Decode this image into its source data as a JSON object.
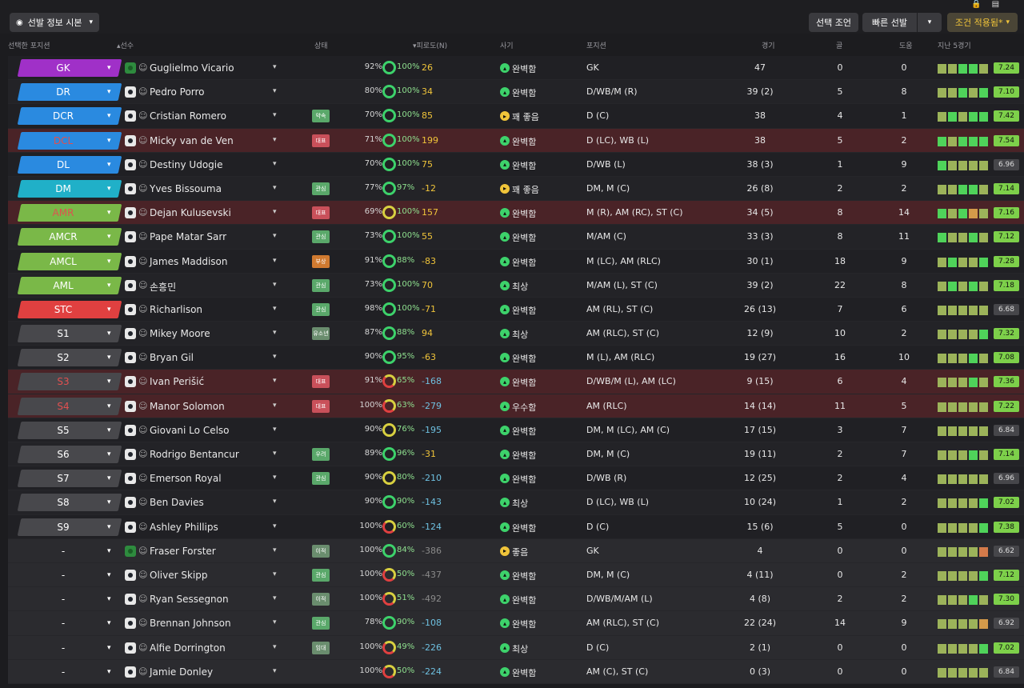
{
  "toolbar": {
    "view_button": "선발 정보 시본",
    "advice_button": "선택 조언",
    "quick_button": "빠른 선발",
    "filter_button": "조건 적용됨*",
    "top_icons": [
      "lock-icon",
      "clipboard-icon"
    ]
  },
  "columns": {
    "position": "선택한 포지션",
    "player": "선수",
    "status": "상태",
    "familiarity": "피로도(N)",
    "morale": "사기",
    "positions": "포지션",
    "apps": "경기",
    "goals": "골",
    "assists": "도움",
    "form": "지난 5경기"
  },
  "colors": {
    "gk": "#a030c8",
    "def": "#2a8ae0",
    "dm": "#20b0c8",
    "att": "#7ab848",
    "st": "#e04040",
    "sub": "#48484c",
    "accent": "#f0c43a"
  },
  "rows": [
    {
      "pos": "GK",
      "cat": "gk",
      "name": "Guglielmo Vicario",
      "kit": "gk",
      "status": "",
      "cond": "92%",
      "sharp": "100%",
      "ring": "green",
      "fam": "26",
      "famc": "pos-v",
      "morale": "완벽함",
      "mor_y": false,
      "positions": "GK",
      "apps": "47",
      "goals": "0",
      "assists": "0",
      "form": [
        "#9cb35a",
        "#9cb35a",
        "#4fd35a",
        "#4fd35a",
        "#9cb35a"
      ],
      "rating": "7.24",
      "rgrey": false,
      "style": ""
    },
    {
      "pos": "DR",
      "cat": "def",
      "name": "Pedro Porro",
      "kit": "",
      "status": "",
      "cond": "80%",
      "sharp": "100%",
      "ring": "green",
      "fam": "34",
      "famc": "pos-v",
      "morale": "완벽함",
      "mor_y": false,
      "positions": "D/WB/M (R)",
      "apps": "39 (2)",
      "goals": "5",
      "assists": "8",
      "form": [
        "#9cb35a",
        "#9cb35a",
        "#4fd35a",
        "#9cb35a",
        "#4fd35a"
      ],
      "rating": "7.10",
      "rgrey": false,
      "style": "alt"
    },
    {
      "pos": "DCR",
      "cat": "def",
      "name": "Cristian Romero",
      "kit": "",
      "status": "약속",
      "stc": "st-green",
      "cond": "70%",
      "sharp": "100%",
      "ring": "green",
      "fam": "85",
      "famc": "pos-v",
      "morale": "꽤 좋음",
      "mor_y": true,
      "positions": "D (C)",
      "apps": "38",
      "goals": "4",
      "assists": "1",
      "form": [
        "#9cb35a",
        "#4fd35a",
        "#9cb35a",
        "#4fd35a",
        "#4fd35a"
      ],
      "rating": "7.42",
      "rgrey": false,
      "style": ""
    },
    {
      "pos": "DCL",
      "cat": "def",
      "name": "Micky van de Ven",
      "kit": "",
      "status": "대표",
      "stc": "st-red",
      "cond": "71%",
      "sharp": "100%",
      "ring": "green",
      "fam": "199",
      "famc": "pos-v",
      "morale": "완벽함",
      "mor_y": false,
      "positions": "D (LC), WB (L)",
      "apps": "38",
      "goals": "5",
      "assists": "2",
      "form": [
        "#4fd35a",
        "#9cb35a",
        "#4fd35a",
        "#4fd35a",
        "#4fd35a"
      ],
      "rating": "7.54",
      "rgrey": false,
      "style": "warn",
      "warnlbl": true
    },
    {
      "pos": "DL",
      "cat": "def",
      "name": "Destiny Udogie",
      "kit": "",
      "status": "",
      "cond": "70%",
      "sharp": "100%",
      "ring": "green",
      "fam": "75",
      "famc": "pos-v",
      "morale": "완벽함",
      "mor_y": false,
      "positions": "D/WB (L)",
      "apps": "38 (3)",
      "goals": "1",
      "assists": "9",
      "form": [
        "#4fd35a",
        "#9cb35a",
        "#9cb35a",
        "#9cb35a",
        "#9cb35a"
      ],
      "rating": "6.96",
      "rgrey": true,
      "style": ""
    },
    {
      "pos": "DM",
      "cat": "dm",
      "name": "Yves Bissouma",
      "kit": "",
      "status": "관심",
      "stc": "st-green",
      "cond": "77%",
      "sharp": "97%",
      "ring": "green",
      "fam": "-12",
      "famc": "pos-v",
      "morale": "꽤 좋음",
      "mor_y": true,
      "positions": "DM, M (C)",
      "apps": "26 (8)",
      "goals": "2",
      "assists": "2",
      "form": [
        "#9cb35a",
        "#9cb35a",
        "#4fd35a",
        "#4fd35a",
        "#9cb35a"
      ],
      "rating": "7.14",
      "rgrey": false,
      "style": "alt"
    },
    {
      "pos": "AMR",
      "cat": "att",
      "name": "Dejan Kulusevski",
      "kit": "",
      "status": "대표",
      "stc": "st-red",
      "cond": "69%",
      "sharp": "100%",
      "ring": "yellow",
      "fam": "157",
      "famc": "pos-v",
      "morale": "완벽함",
      "mor_y": false,
      "positions": "M (R), AM (RC), ST (C)",
      "apps": "34 (5)",
      "goals": "8",
      "assists": "14",
      "form": [
        "#4fd35a",
        "#9cb35a",
        "#4fd35a",
        "#d49a4a",
        "#9cb35a"
      ],
      "rating": "7.16",
      "rgrey": false,
      "style": "warn",
      "warnlbl": true
    },
    {
      "pos": "AMCR",
      "cat": "att",
      "name": "Pape Matar Sarr",
      "kit": "",
      "status": "관심",
      "stc": "st-green",
      "cond": "73%",
      "sharp": "100%",
      "ring": "green",
      "fam": "55",
      "famc": "pos-v",
      "morale": "완벽함",
      "mor_y": false,
      "positions": "M/AM (C)",
      "apps": "33 (3)",
      "goals": "8",
      "assists": "11",
      "form": [
        "#4fd35a",
        "#9cb35a",
        "#9cb35a",
        "#4fd35a",
        "#9cb35a"
      ],
      "rating": "7.12",
      "rgrey": false,
      "style": "alt"
    },
    {
      "pos": "AMCL",
      "cat": "att",
      "name": "James Maddison",
      "kit": "",
      "status": "부상",
      "stc": "st-orange",
      "cond": "91%",
      "sharp": "88%",
      "ring": "green",
      "fam": "-83",
      "famc": "pos-v",
      "morale": "완벽함",
      "mor_y": false,
      "positions": "M (LC), AM (RLC)",
      "apps": "30 (1)",
      "goals": "18",
      "assists": "9",
      "form": [
        "#9cb35a",
        "#4fd35a",
        "#9cb35a",
        "#9cb35a",
        "#4fd35a"
      ],
      "rating": "7.28",
      "rgrey": false,
      "style": ""
    },
    {
      "pos": "AML",
      "cat": "att",
      "name": "손흥민",
      "kit": "",
      "status": "관심",
      "stc": "st-green",
      "cond": "73%",
      "sharp": "100%",
      "ring": "green",
      "fam": "70",
      "famc": "pos-v",
      "morale": "최상",
      "mor_y": false,
      "positions": "M/AM (L), ST (C)",
      "apps": "39 (2)",
      "goals": "22",
      "assists": "8",
      "form": [
        "#9cb35a",
        "#4fd35a",
        "#9cb35a",
        "#4fd35a",
        "#9cb35a"
      ],
      "rating": "7.18",
      "rgrey": false,
      "style": "alt"
    },
    {
      "pos": "STC",
      "cat": "st",
      "name": "Richarlison",
      "kit": "",
      "status": "관심",
      "stc": "st-green",
      "cond": "98%",
      "sharp": "100%",
      "ring": "green",
      "fam": "-71",
      "famc": "pos-v",
      "morale": "완벽함",
      "mor_y": false,
      "positions": "AM (RL), ST (C)",
      "apps": "26 (13)",
      "goals": "7",
      "assists": "6",
      "form": [
        "#9cb35a",
        "#9cb35a",
        "#9cb35a",
        "#9cb35a",
        "#9cb35a"
      ],
      "rating": "6.68",
      "rgrey": true,
      "style": ""
    },
    {
      "pos": "S1",
      "cat": "sub",
      "name": "Mikey Moore",
      "kit": "",
      "status": "유소년",
      "stc": "st-gray",
      "cond": "87%",
      "sharp": "88%",
      "ring": "green",
      "fam": "94",
      "famc": "pos-v",
      "morale": "최상",
      "mor_y": false,
      "positions": "AM (RLC), ST (C)",
      "apps": "12 (9)",
      "goals": "10",
      "assists": "2",
      "form": [
        "#9cb35a",
        "#9cb35a",
        "#9cb35a",
        "#9cb35a",
        "#4fd35a"
      ],
      "rating": "7.32",
      "rgrey": false,
      "style": "alt"
    },
    {
      "pos": "S2",
      "cat": "sub",
      "name": "Bryan Gil",
      "kit": "",
      "status": "",
      "cond": "90%",
      "sharp": "95%",
      "ring": "green",
      "fam": "-63",
      "famc": "pos-v",
      "morale": "완벽함",
      "mor_y": false,
      "positions": "M (L), AM (RLC)",
      "apps": "19 (27)",
      "goals": "16",
      "assists": "10",
      "form": [
        "#9cb35a",
        "#9cb35a",
        "#9cb35a",
        "#4fd35a",
        "#9cb35a"
      ],
      "rating": "7.08",
      "rgrey": false,
      "style": ""
    },
    {
      "pos": "S3",
      "cat": "sub",
      "name": "Ivan Perišić",
      "kit": "",
      "status": "대표",
      "stc": "st-red",
      "cond": "91%",
      "sharp": "65%",
      "ring": "red",
      "fam": "-168",
      "famc": "neg-v",
      "morale": "완벽함",
      "mor_y": false,
      "positions": "D/WB/M (L), AM (LC)",
      "apps": "9 (15)",
      "goals": "6",
      "assists": "4",
      "form": [
        "#9cb35a",
        "#9cb35a",
        "#9cb35a",
        "#4fd35a",
        "#9cb35a"
      ],
      "rating": "7.36",
      "rgrey": false,
      "style": "warn",
      "warnlbl": true
    },
    {
      "pos": "S4",
      "cat": "sub",
      "name": "Manor Solomon",
      "kit": "",
      "status": "대표",
      "stc": "st-red",
      "cond": "100%",
      "sharp": "63%",
      "ring": "red",
      "fam": "-279",
      "famc": "neg-v",
      "morale": "우수함",
      "mor_y": false,
      "positions": "AM (RLC)",
      "apps": "14 (14)",
      "goals": "11",
      "assists": "5",
      "form": [
        "#9cb35a",
        "#9cb35a",
        "#9cb35a",
        "#9cb35a",
        "#9cb35a"
      ],
      "rating": "7.22",
      "rgrey": false,
      "style": "warn",
      "warnlbl": true
    },
    {
      "pos": "S5",
      "cat": "sub",
      "name": "Giovani Lo Celso",
      "kit": "",
      "status": "",
      "cond": "90%",
      "sharp": "76%",
      "ring": "yellow",
      "fam": "-195",
      "famc": "neg-v",
      "morale": "완벽함",
      "mor_y": false,
      "positions": "DM, M (LC), AM (C)",
      "apps": "17 (15)",
      "goals": "3",
      "assists": "7",
      "form": [
        "#9cb35a",
        "#9cb35a",
        "#9cb35a",
        "#9cb35a",
        "#9cb35a"
      ],
      "rating": "6.84",
      "rgrey": true,
      "style": ""
    },
    {
      "pos": "S6",
      "cat": "sub",
      "name": "Rodrigo Bentancur",
      "kit": "",
      "status": "우려",
      "stc": "st-green",
      "cond": "89%",
      "sharp": "96%",
      "ring": "green",
      "fam": "-31",
      "famc": "pos-v",
      "morale": "완벽함",
      "mor_y": false,
      "positions": "DM, M (C)",
      "apps": "19 (11)",
      "goals": "2",
      "assists": "7",
      "form": [
        "#9cb35a",
        "#9cb35a",
        "#9cb35a",
        "#4fd35a",
        "#9cb35a"
      ],
      "rating": "7.14",
      "rgrey": false,
      "style": "alt"
    },
    {
      "pos": "S7",
      "cat": "sub",
      "name": "Emerson Royal",
      "kit": "",
      "status": "관심",
      "stc": "st-green",
      "cond": "90%",
      "sharp": "80%",
      "ring": "yellow",
      "fam": "-210",
      "famc": "neg-v",
      "morale": "완벽함",
      "mor_y": false,
      "positions": "D/WB (R)",
      "apps": "12 (25)",
      "goals": "2",
      "assists": "4",
      "form": [
        "#9cb35a",
        "#9cb35a",
        "#9cb35a",
        "#9cb35a",
        "#9cb35a"
      ],
      "rating": "6.96",
      "rgrey": true,
      "style": ""
    },
    {
      "pos": "S8",
      "cat": "sub",
      "name": "Ben Davies",
      "kit": "",
      "status": "",
      "cond": "90%",
      "sharp": "90%",
      "ring": "green",
      "fam": "-143",
      "famc": "neg-v",
      "morale": "최상",
      "mor_y": false,
      "positions": "D (LC), WB (L)",
      "apps": "10 (24)",
      "goals": "1",
      "assists": "2",
      "form": [
        "#9cb35a",
        "#9cb35a",
        "#9cb35a",
        "#9cb35a",
        "#4fd35a"
      ],
      "rating": "7.02",
      "rgrey": false,
      "style": "alt"
    },
    {
      "pos": "S9",
      "cat": "sub",
      "name": "Ashley Phillips",
      "kit": "",
      "status": "",
      "cond": "100%",
      "sharp": "60%",
      "ring": "red",
      "fam": "-124",
      "famc": "neg-v",
      "morale": "완벽함",
      "mor_y": false,
      "positions": "D (C)",
      "apps": "15 (6)",
      "goals": "5",
      "assists": "0",
      "form": [
        "#9cb35a",
        "#9cb35a",
        "#9cb35a",
        "#9cb35a",
        "#4fd35a"
      ],
      "rating": "7.38",
      "rgrey": false,
      "style": ""
    },
    {
      "pos": "-",
      "cat": "none",
      "name": "Fraser Forster",
      "kit": "gk",
      "status": "이적",
      "stc": "st-gray",
      "cond": "100%",
      "sharp": "84%",
      "ring": "green",
      "fam": "-386",
      "famc": "neg-g",
      "morale": "좋음",
      "mor_y": true,
      "positions": "GK",
      "apps": "4",
      "goals": "0",
      "assists": "0",
      "form": [
        "#9cb35a",
        "#9cb35a",
        "#9cb35a",
        "#9cb35a",
        "#d47a4a"
      ],
      "rating": "6.62",
      "rgrey": true,
      "style": "bench"
    },
    {
      "pos": "-",
      "cat": "none",
      "name": "Oliver Skipp",
      "kit": "",
      "status": "관심",
      "stc": "st-green",
      "cond": "100%",
      "sharp": "50%",
      "ring": "red",
      "fam": "-437",
      "famc": "neg-g",
      "morale": "완벽함",
      "mor_y": false,
      "positions": "DM, M (C)",
      "apps": "4 (11)",
      "goals": "0",
      "assists": "2",
      "form": [
        "#9cb35a",
        "#9cb35a",
        "#9cb35a",
        "#9cb35a",
        "#4fd35a"
      ],
      "rating": "7.12",
      "rgrey": false,
      "style": "bench"
    },
    {
      "pos": "-",
      "cat": "none",
      "name": "Ryan Sessegnon",
      "kit": "",
      "status": "이적",
      "stc": "st-gray",
      "cond": "100%",
      "sharp": "51%",
      "ring": "red",
      "fam": "-492",
      "famc": "neg-g",
      "morale": "완벽함",
      "mor_y": false,
      "positions": "D/WB/M/AM (L)",
      "apps": "4 (8)",
      "goals": "2",
      "assists": "2",
      "form": [
        "#9cb35a",
        "#9cb35a",
        "#9cb35a",
        "#4fd35a",
        "#9cb35a"
      ],
      "rating": "7.30",
      "rgrey": false,
      "style": "bench"
    },
    {
      "pos": "-",
      "cat": "none",
      "name": "Brennan Johnson",
      "kit": "",
      "status": "관심",
      "stc": "st-green",
      "cond": "78%",
      "sharp": "90%",
      "ring": "green",
      "fam": "-108",
      "famc": "neg-v",
      "morale": "완벽함",
      "mor_y": false,
      "positions": "AM (RLC), ST (C)",
      "apps": "22 (24)",
      "goals": "14",
      "assists": "9",
      "form": [
        "#9cb35a",
        "#9cb35a",
        "#9cb35a",
        "#9cb35a",
        "#d49a4a"
      ],
      "rating": "6.92",
      "rgrey": true,
      "style": "bench"
    },
    {
      "pos": "-",
      "cat": "none",
      "name": "Alfie Dorrington",
      "kit": "",
      "status": "임대",
      "stc": "st-gray",
      "cond": "100%",
      "sharp": "49%",
      "ring": "red",
      "fam": "-226",
      "famc": "neg-v",
      "morale": "최상",
      "mor_y": false,
      "positions": "D (C)",
      "apps": "2 (1)",
      "goals": "0",
      "assists": "0",
      "form": [
        "#9cb35a",
        "#9cb35a",
        "#9cb35a",
        "#9cb35a",
        "#4fd35a"
      ],
      "rating": "7.02",
      "rgrey": false,
      "style": "bench"
    },
    {
      "pos": "-",
      "cat": "none",
      "name": "Jamie Donley",
      "kit": "",
      "status": "",
      "cond": "100%",
      "sharp": "50%",
      "ring": "red",
      "fam": "-224",
      "famc": "neg-v",
      "morale": "완벽함",
      "mor_y": false,
      "positions": "AM (C), ST (C)",
      "apps": "0 (3)",
      "goals": "0",
      "assists": "0",
      "form": [
        "#9cb35a",
        "#9cb35a",
        "#9cb35a",
        "#9cb35a",
        "#9cb35a"
      ],
      "rating": "6.84",
      "rgrey": true,
      "style": "bench"
    }
  ]
}
